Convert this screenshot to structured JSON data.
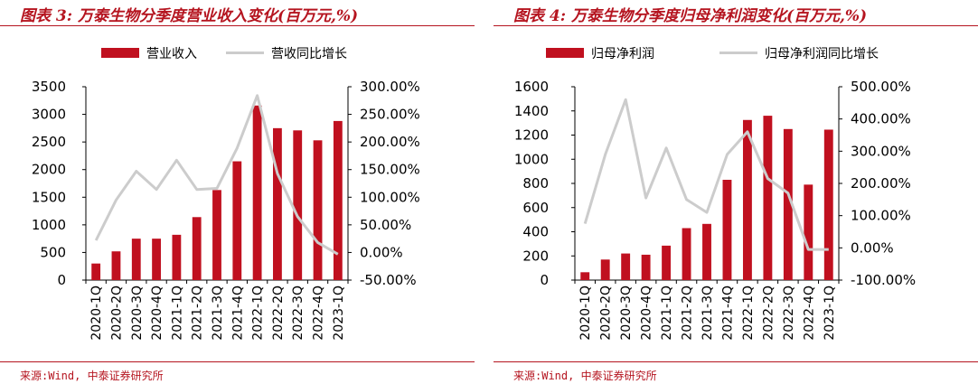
{
  "colors": {
    "bar": "#c0101f",
    "line": "#cccccc",
    "accent": "#b5141f"
  },
  "charts": [
    {
      "title": "图表 3:  万泰生物分季度营业收入变化(百万元,%)",
      "source": "来源:Wind, 中泰证券研究所",
      "legend": {
        "bar_label": "营业收入",
        "line_label": "营收同比增长"
      },
      "y_ticks": [
        "0",
        "500",
        "1000",
        "1500",
        "2000",
        "2500",
        "3000",
        "3500"
      ],
      "y2_ticks": [
        "-50.00%",
        "0.00%",
        "50.00%",
        "100.00%",
        "150.00%",
        "200.00%",
        "250.00%",
        "300.00%"
      ]
    },
    {
      "title": "图表 4:  万泰生物分季度归母净利润变化(百万元,%)",
      "source": "来源:Wind, 中泰证券研究所",
      "legend": {
        "bar_label": "归母净利润",
        "line_label": "归母净利润同比增长"
      },
      "y_ticks": [
        "0",
        "200",
        "400",
        "600",
        "800",
        "1000",
        "1200",
        "1400",
        "1600"
      ],
      "y2_ticks": [
        "-100.00%",
        "0.00%",
        "100.00%",
        "200.00%",
        "300.00%",
        "400.00%",
        "500.00%"
      ]
    }
  ],
  "chart_data": [
    {
      "type": "bar",
      "categories": [
        "2020-1Q",
        "2020-2Q",
        "2020-3Q",
        "2020-4Q",
        "2021-1Q",
        "2021-2Q",
        "2021-3Q",
        "2021-4Q",
        "2022-1Q",
        "2022-2Q",
        "2022-3Q",
        "2022-4Q",
        "2023-1Q"
      ],
      "series": [
        {
          "name": "营业收入",
          "type": "bar",
          "axis": "left",
          "values": [
            300,
            520,
            750,
            750,
            820,
            1140,
            1630,
            2150,
            3160,
            2750,
            2710,
            2530,
            2880
          ]
        },
        {
          "name": "营收同比增长",
          "type": "line",
          "axis": "right",
          "values": [
            22,
            95,
            147,
            114,
            167,
            114,
            116,
            189,
            284,
            143,
            65,
            18,
            -3
          ]
        }
      ],
      "ylim": [
        0,
        3500
      ],
      "y2lim": [
        -50,
        300
      ],
      "legend": "top"
    },
    {
      "type": "bar",
      "categories": [
        "2020-1Q",
        "2020-2Q",
        "2020-3Q",
        "2020-4Q",
        "2021-1Q",
        "2021-2Q",
        "2021-3Q",
        "2021-4Q",
        "2022-1Q",
        "2022-2Q",
        "2022-3Q",
        "2022-4Q",
        "2023-1Q"
      ],
      "series": [
        {
          "name": "归母净利润",
          "type": "bar",
          "axis": "left",
          "values": [
            65,
            170,
            220,
            210,
            285,
            430,
            465,
            830,
            1325,
            1360,
            1250,
            790,
            1245
          ]
        },
        {
          "name": "归母净利润同比增长",
          "type": "line",
          "axis": "right",
          "values": [
            75,
            290,
            460,
            155,
            310,
            150,
            110,
            290,
            360,
            215,
            170,
            -5,
            -5
          ]
        }
      ],
      "ylim": [
        0,
        1600
      ],
      "y2lim": [
        -100,
        500
      ],
      "legend": "top"
    }
  ]
}
